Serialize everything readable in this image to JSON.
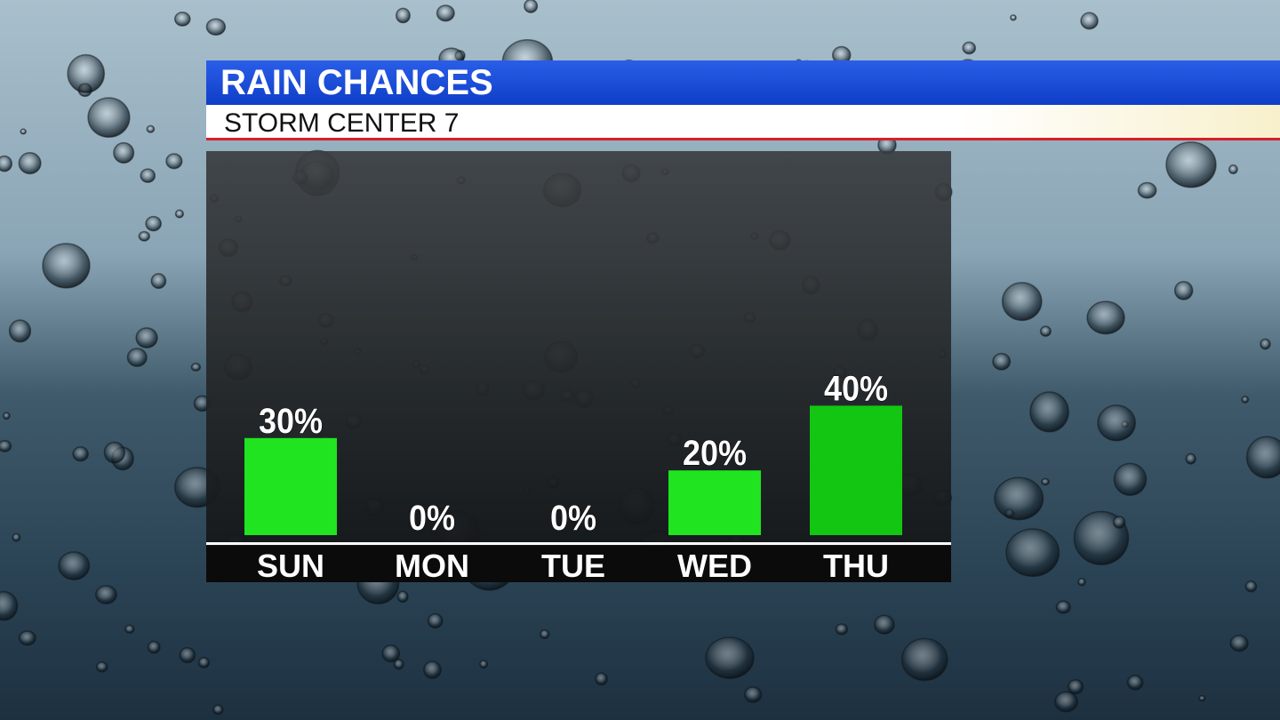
{
  "chart_data": {
    "type": "bar",
    "title": "RAIN CHANCES",
    "subtitle": "STORM CENTER 7",
    "categories": [
      "SUN",
      "MON",
      "TUE",
      "WED",
      "THU"
    ],
    "values": [
      30,
      0,
      0,
      20,
      40
    ],
    "value_labels": [
      "30%",
      "0%",
      "0%",
      "20%",
      "40%"
    ],
    "colors": [
      "#1fe41f",
      "#1fe41f",
      "#1fe41f",
      "#1fe41f",
      "#12c612"
    ]
  }
}
